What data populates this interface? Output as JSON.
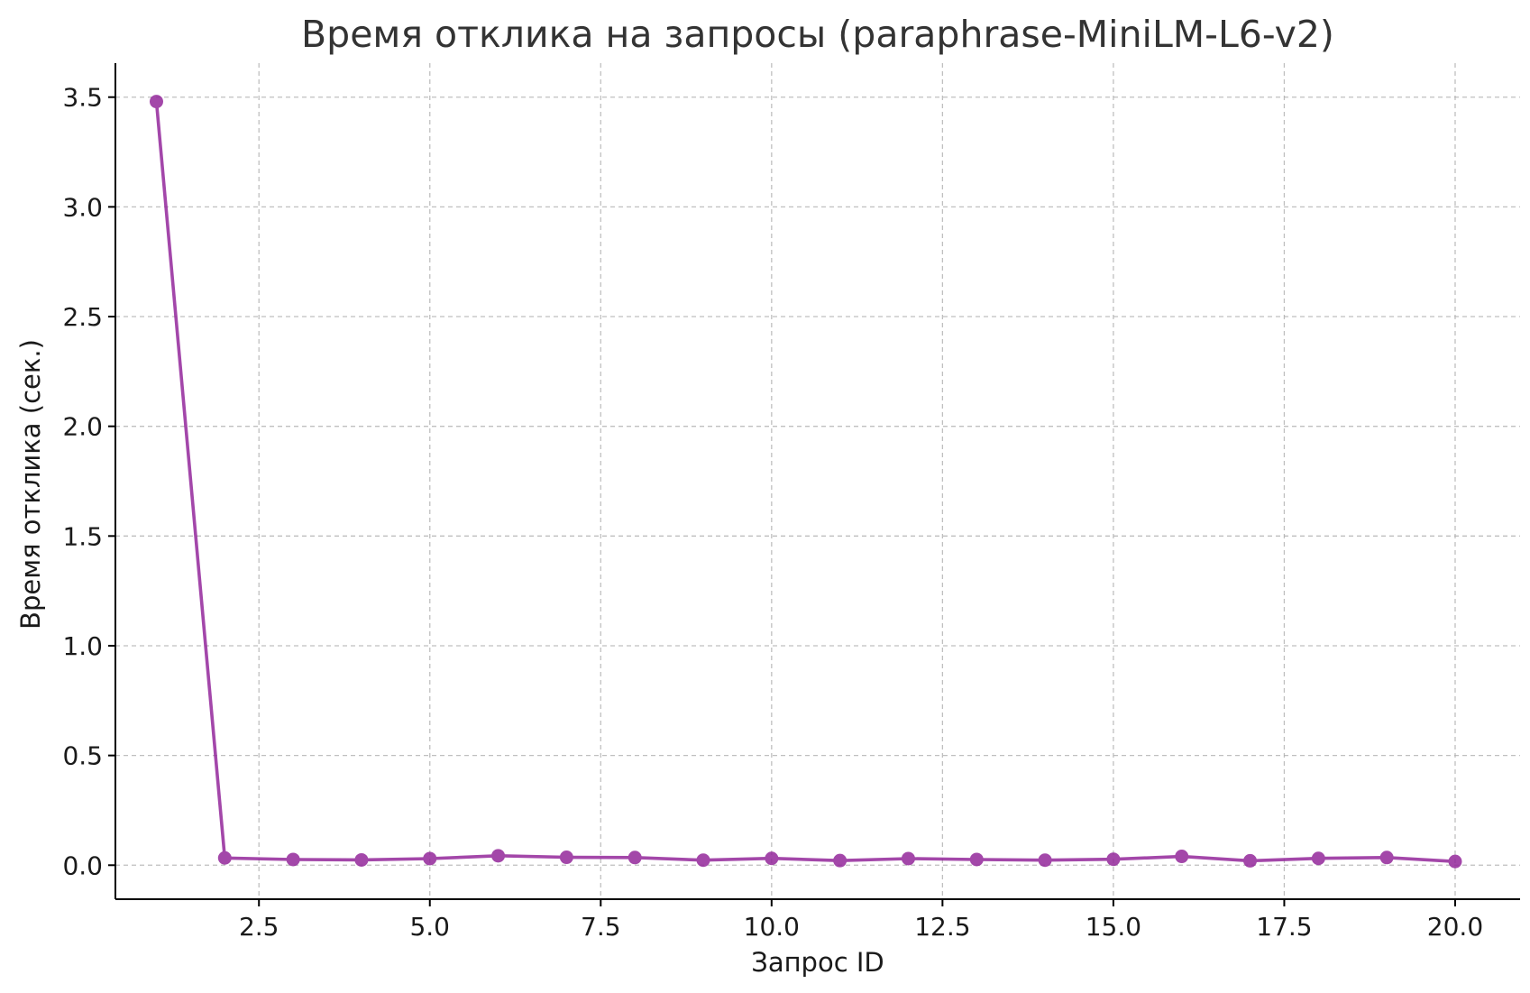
{
  "chart_data": {
    "type": "line",
    "title": "Время отклика на запросы (paraphrase-MiniLM-L6-v2)",
    "xlabel": "Запрос ID",
    "ylabel": "Время отклика (сек.)",
    "xlim": [
      0.4,
      20.95
    ],
    "ylim": [
      -0.155,
      3.655
    ],
    "x_ticks": [
      2.5,
      5.0,
      7.5,
      10.0,
      12.5,
      15.0,
      17.5,
      20.0
    ],
    "x_tick_labels": [
      "2.5",
      "5.0",
      "7.5",
      "10.0",
      "12.5",
      "15.0",
      "17.5",
      "20.0"
    ],
    "y_ticks": [
      0.0,
      0.5,
      1.0,
      1.5,
      2.0,
      2.5,
      3.0,
      3.5
    ],
    "y_tick_labels": [
      "0.0",
      "0.5",
      "1.0",
      "1.5",
      "2.0",
      "2.5",
      "3.0",
      "3.5"
    ],
    "grid": true,
    "legend": "none",
    "series": [
      {
        "color": "#93279b",
        "marker": "circle",
        "x": [
          1,
          2,
          3,
          4,
          5,
          6,
          7,
          8,
          9,
          10,
          11,
          12,
          13,
          14,
          15,
          16,
          17,
          18,
          19,
          20
        ],
        "y": [
          3.48,
          0.033,
          0.026,
          0.024,
          0.03,
          0.043,
          0.036,
          0.035,
          0.023,
          0.031,
          0.021,
          0.03,
          0.026,
          0.023,
          0.027,
          0.04,
          0.02,
          0.031,
          0.035,
          0.017
        ]
      }
    ]
  }
}
